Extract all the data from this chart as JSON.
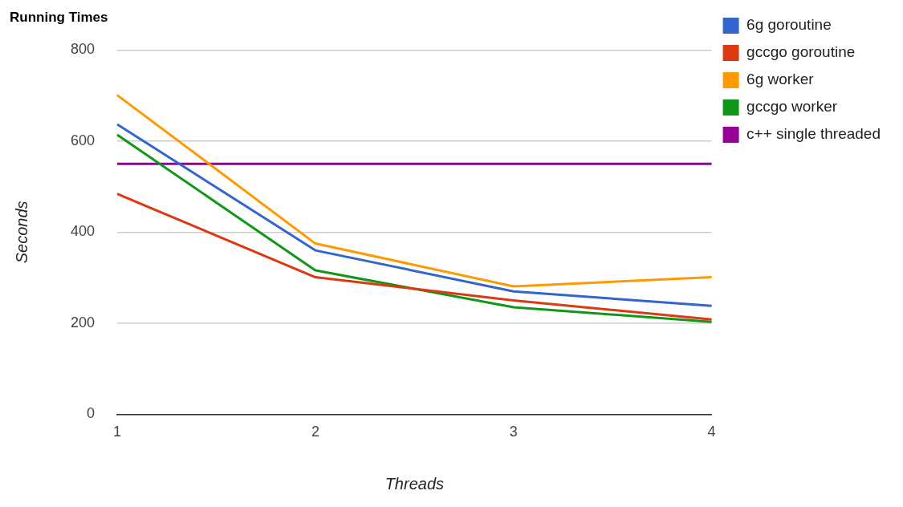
{
  "chart_data": {
    "type": "line",
    "title": "Running Times",
    "xlabel": "Threads",
    "ylabel": "Seconds",
    "categories": [
      "1",
      "2",
      "3",
      "4"
    ],
    "series": [
      {
        "name": "6g goroutine",
        "color": "#3366cc",
        "values": [
          637,
          360,
          270,
          238
        ]
      },
      {
        "name": "gccgo goroutine",
        "color": "#dc3912",
        "values": [
          484,
          301,
          250,
          208
        ]
      },
      {
        "name": "6g worker",
        "color": "#ff9900",
        "values": [
          701,
          375,
          281,
          301
        ]
      },
      {
        "name": "gccgo worker",
        "color": "#109618",
        "values": [
          614,
          316,
          235,
          203
        ]
      },
      {
        "name": "c++ single threaded",
        "color": "#990099",
        "values": [
          550,
          550,
          550,
          550
        ]
      }
    ],
    "ylim": [
      0,
      800
    ],
    "yticks": [
      0,
      200,
      400,
      600,
      800
    ],
    "grid": "y",
    "legend": "right",
    "marker": "none",
    "line_style": "solid"
  }
}
